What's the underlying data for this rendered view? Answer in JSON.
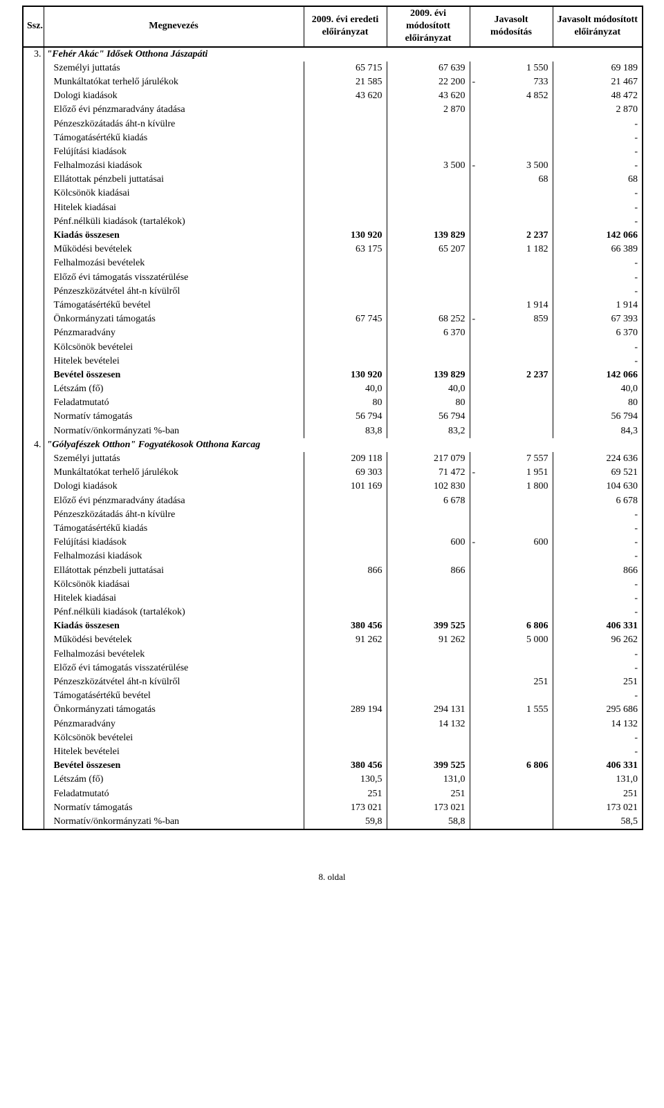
{
  "headers": {
    "ssz": "Ssz.",
    "name": "Megnevezés",
    "c1": "2009. évi eredeti előirányzat",
    "c2": "2009. évi módosított előirányzat",
    "c3": "Javasolt módosítás",
    "c4": "Javasolt módosított előirányzat"
  },
  "sections": [
    {
      "num": "3.",
      "title": "\"Fehér Akác\" Idősek Otthona Jászapáti",
      "rows": [
        {
          "label": "Személyi juttatás",
          "c1": "65 715",
          "c2": "67 639",
          "sign": "",
          "c3": "1 550",
          "c4": "69 189"
        },
        {
          "label": "Munkáltatókat terhelő járulékok",
          "c1": "21 585",
          "c2": "22 200",
          "sign": "-",
          "c3": "733",
          "c4": "21 467"
        },
        {
          "label": "Dologi kiadások",
          "c1": "43 620",
          "c2": "43 620",
          "sign": "",
          "c3": "4 852",
          "c4": "48 472"
        },
        {
          "label": "Előző évi pénzmaradvány átadása",
          "c1": "",
          "c2": "2 870",
          "sign": "",
          "c3": "",
          "c4": "2 870"
        },
        {
          "label": "Pénzeszközátadás áht-n kívülre",
          "c1": "",
          "c2": "",
          "sign": "",
          "c3": "",
          "c4": "-"
        },
        {
          "label": "Támogatásértékű kiadás",
          "c1": "",
          "c2": "",
          "sign": "",
          "c3": "",
          "c4": "-"
        },
        {
          "label": "Felújítási kiadások",
          "c1": "",
          "c2": "",
          "sign": "",
          "c3": "",
          "c4": "-"
        },
        {
          "label": "Felhalmozási kiadások",
          "c1": "",
          "c2": "3 500",
          "sign": "-",
          "c3": "3 500",
          "c4": "-"
        },
        {
          "label": "Ellátottak pénzbeli juttatásai",
          "c1": "",
          "c2": "",
          "sign": "",
          "c3": "68",
          "c4": "68"
        },
        {
          "label": "Kölcsönök kiadásai",
          "c1": "",
          "c2": "",
          "sign": "",
          "c3": "",
          "c4": "-"
        },
        {
          "label": "Hitelek kiadásai",
          "c1": "",
          "c2": "",
          "sign": "",
          "c3": "",
          "c4": "-"
        },
        {
          "label": "Pénf.nélküli kiadások (tartalékok)",
          "c1": "",
          "c2": "",
          "sign": "",
          "c3": "",
          "c4": "-"
        },
        {
          "label": "Kiadás összesen",
          "c1": "130 920",
          "c2": "139 829",
          "sign": "",
          "c3": "2 237",
          "c4": "142 066",
          "bold": true
        },
        {
          "label": "Működési bevételek",
          "c1": "63 175",
          "c2": "65 207",
          "sign": "",
          "c3": "1 182",
          "c4": "66 389"
        },
        {
          "label": "Felhalmozási bevételek",
          "c1": "",
          "c2": "",
          "sign": "",
          "c3": "",
          "c4": "-"
        },
        {
          "label": "Előző évi támogatás visszatérülése",
          "c1": "",
          "c2": "",
          "sign": "",
          "c3": "",
          "c4": "-"
        },
        {
          "label": "Pénzeszközátvétel áht-n kívülről",
          "c1": "",
          "c2": "",
          "sign": "",
          "c3": "",
          "c4": "-"
        },
        {
          "label": "Támogatásértékű bevétel",
          "c1": "",
          "c2": "",
          "sign": "",
          "c3": "1 914",
          "c4": "1 914"
        },
        {
          "label": "Önkormányzati támogatás",
          "c1": "67 745",
          "c2": "68 252",
          "sign": "-",
          "c3": "859",
          "c4": "67 393"
        },
        {
          "label": "Pénzmaradvány",
          "c1": "",
          "c2": "6 370",
          "sign": "",
          "c3": "",
          "c4": "6 370"
        },
        {
          "label": "Kölcsönök bevételei",
          "c1": "",
          "c2": "",
          "sign": "",
          "c3": "",
          "c4": "-"
        },
        {
          "label": "Hitelek bevételei",
          "c1": "",
          "c2": "",
          "sign": "",
          "c3": "",
          "c4": "-"
        },
        {
          "label": "Bevétel összesen",
          "c1": "130 920",
          "c2": "139 829",
          "sign": "",
          "c3": "2 237",
          "c4": "142 066",
          "bold": true
        },
        {
          "label": "Létszám (fő)",
          "c1": "40,0",
          "c2": "40,0",
          "sign": "",
          "c3": "",
          "c4": "40,0"
        },
        {
          "label": "Feladatmutató",
          "c1": "80",
          "c2": "80",
          "sign": "",
          "c3": "",
          "c4": "80"
        },
        {
          "label": "Normatív támogatás",
          "c1": "56 794",
          "c2": "56 794",
          "sign": "",
          "c3": "",
          "c4": "56 794"
        },
        {
          "label": "Normatív/önkormányzati %-ban",
          "c1": "83,8",
          "c2": "83,2",
          "sign": "",
          "c3": "",
          "c4": "84,3"
        }
      ]
    },
    {
      "num": "4.",
      "title": "\"Gólyafészek Otthon\" Fogyatékosok Otthona Karcag",
      "rows": [
        {
          "label": "Személyi juttatás",
          "c1": "209 118",
          "c2": "217 079",
          "sign": "",
          "c3": "7 557",
          "c4": "224 636"
        },
        {
          "label": "Munkáltatókat terhelő járulékok",
          "c1": "69 303",
          "c2": "71 472",
          "sign": "-",
          "c3": "1 951",
          "c4": "69 521"
        },
        {
          "label": "Dologi kiadások",
          "c1": "101 169",
          "c2": "102 830",
          "sign": "",
          "c3": "1 800",
          "c4": "104 630"
        },
        {
          "label": "Előző évi pénzmaradvány átadása",
          "c1": "",
          "c2": "6 678",
          "sign": "",
          "c3": "",
          "c4": "6 678"
        },
        {
          "label": "Pénzeszközátadás áht-n kívülre",
          "c1": "",
          "c2": "",
          "sign": "",
          "c3": "",
          "c4": "-"
        },
        {
          "label": "Támogatásértékű kiadás",
          "c1": "",
          "c2": "",
          "sign": "",
          "c3": "",
          "c4": "-"
        },
        {
          "label": "Felújítási kiadások",
          "c1": "",
          "c2": "600",
          "sign": "-",
          "c3": "600",
          "c4": "-"
        },
        {
          "label": "Felhalmozási kiadások",
          "c1": "",
          "c2": "",
          "sign": "",
          "c3": "",
          "c4": "-"
        },
        {
          "label": "Ellátottak pénzbeli juttatásai",
          "c1": "866",
          "c2": "866",
          "sign": "",
          "c3": "",
          "c4": "866"
        },
        {
          "label": "Kölcsönök kiadásai",
          "c1": "",
          "c2": "",
          "sign": "",
          "c3": "",
          "c4": "-"
        },
        {
          "label": "Hitelek kiadásai",
          "c1": "",
          "c2": "",
          "sign": "",
          "c3": "",
          "c4": "-"
        },
        {
          "label": "Pénf.nélküli kiadások (tartalékok)",
          "c1": "",
          "c2": "",
          "sign": "",
          "c3": "",
          "c4": "-"
        },
        {
          "label": "Kiadás összesen",
          "c1": "380 456",
          "c2": "399 525",
          "sign": "",
          "c3": "6 806",
          "c4": "406 331",
          "bold": true
        },
        {
          "label": "Működési bevételek",
          "c1": "91 262",
          "c2": "91 262",
          "sign": "",
          "c3": "5 000",
          "c4": "96 262"
        },
        {
          "label": "Felhalmozási bevételek",
          "c1": "",
          "c2": "",
          "sign": "",
          "c3": "",
          "c4": "-"
        },
        {
          "label": "Előző évi támogatás visszatérülése",
          "c1": "",
          "c2": "",
          "sign": "",
          "c3": "",
          "c4": "-"
        },
        {
          "label": "Pénzeszközátvétel áht-n kívülről",
          "c1": "",
          "c2": "",
          "sign": "",
          "c3": "251",
          "c4": "251"
        },
        {
          "label": "Támogatásértékű bevétel",
          "c1": "",
          "c2": "",
          "sign": "",
          "c3": "",
          "c4": "-"
        },
        {
          "label": "Önkormányzati támogatás",
          "c1": "289 194",
          "c2": "294 131",
          "sign": "",
          "c3": "1 555",
          "c4": "295 686"
        },
        {
          "label": "Pénzmaradvány",
          "c1": "",
          "c2": "14 132",
          "sign": "",
          "c3": "",
          "c4": "14 132"
        },
        {
          "label": "Kölcsönök bevételei",
          "c1": "",
          "c2": "",
          "sign": "",
          "c3": "",
          "c4": "-"
        },
        {
          "label": "Hitelek bevételei",
          "c1": "",
          "c2": "",
          "sign": "",
          "c3": "",
          "c4": "-"
        },
        {
          "label": "Bevétel összesen",
          "c1": "380 456",
          "c2": "399 525",
          "sign": "",
          "c3": "6 806",
          "c4": "406 331",
          "bold": true
        },
        {
          "label": "Létszám (fő)",
          "c1": "130,5",
          "c2": "131,0",
          "sign": "",
          "c3": "",
          "c4": "131,0"
        },
        {
          "label": "Feladatmutató",
          "c1": "251",
          "c2": "251",
          "sign": "",
          "c3": "",
          "c4": "251"
        },
        {
          "label": "Normatív támogatás",
          "c1": "173 021",
          "c2": "173 021",
          "sign": "",
          "c3": "",
          "c4": "173 021"
        },
        {
          "label": "Normatív/önkormányzati %-ban",
          "c1": "59,8",
          "c2": "58,8",
          "sign": "",
          "c3": "",
          "c4": "58,5"
        }
      ]
    }
  ],
  "footer": "8. oldal"
}
